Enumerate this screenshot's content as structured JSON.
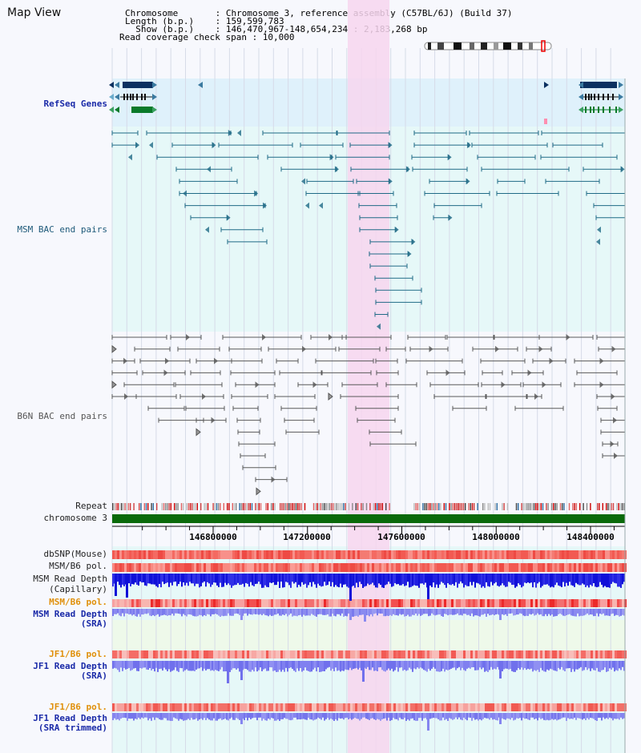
{
  "view": {
    "title": "Map View"
  },
  "header": {
    "lines": [
      "Chromosome       : Chromosome 3, reference assembly (C57BL/6J) (Build 37)",
      "Length (b.p.)    : 159,599,783",
      "  Show (b.p.)    : 146,470,967-148,654,234 : 2,183,268 bp",
      "Read coverage check span : 10,000"
    ]
  },
  "tracks": {
    "refseq": "RefSeq Genes",
    "msm_bac": "MSM BAC end pairs",
    "b6n_bac": "B6N BAC end pairs",
    "repeat": "Repeat",
    "chromosome": "chromosome 3",
    "dbsnp": "dbSNP(Mouse)",
    "msm_pol1": "MSM/B6 pol.",
    "msm_depth_cap_1": "MSM Read Depth",
    "msm_depth_cap_2": "(Capillary)",
    "msm_pol2": "MSM/B6 pol.",
    "msm_depth_sra_1": "MSM Read Depth",
    "msm_depth_sra_2": "(SRA)",
    "jf1_pol1": "JF1/B6 pol.",
    "jf1_depth_sra_1": "JF1 Read Depth",
    "jf1_depth_sra_2": "(SRA)",
    "jf1_pol2": "JF1/B6 pol.",
    "jf1_depth_trim_1": "JF1 Read Depth",
    "jf1_depth_trim_2": "(SRA trimmed)"
  },
  "axis": {
    "ticks": [
      "146800000",
      "147200000",
      "147600000",
      "148000000",
      "148400000"
    ],
    "tick_values": [
      146800000,
      147200000,
      147600000,
      148000000,
      148400000
    ]
  },
  "colors": {
    "highlight": "#f7d6ef",
    "refseq_bg": "#dff1fb",
    "msm_bg": "#e6f8f8",
    "b6n_bg": "#f7f8fd",
    "msm_pair": "#1f6a86",
    "b6n_pair": "#5a5a5a",
    "gene_dark": "#0b3060",
    "gene_green": "#0a7a2a",
    "chromosome": "#0a6a0a",
    "pol_red": "#f2605a",
    "depth_blue": "#1a1ad8",
    "depth_light": "#8888f0",
    "orange_label": "#e0900a"
  }
}
